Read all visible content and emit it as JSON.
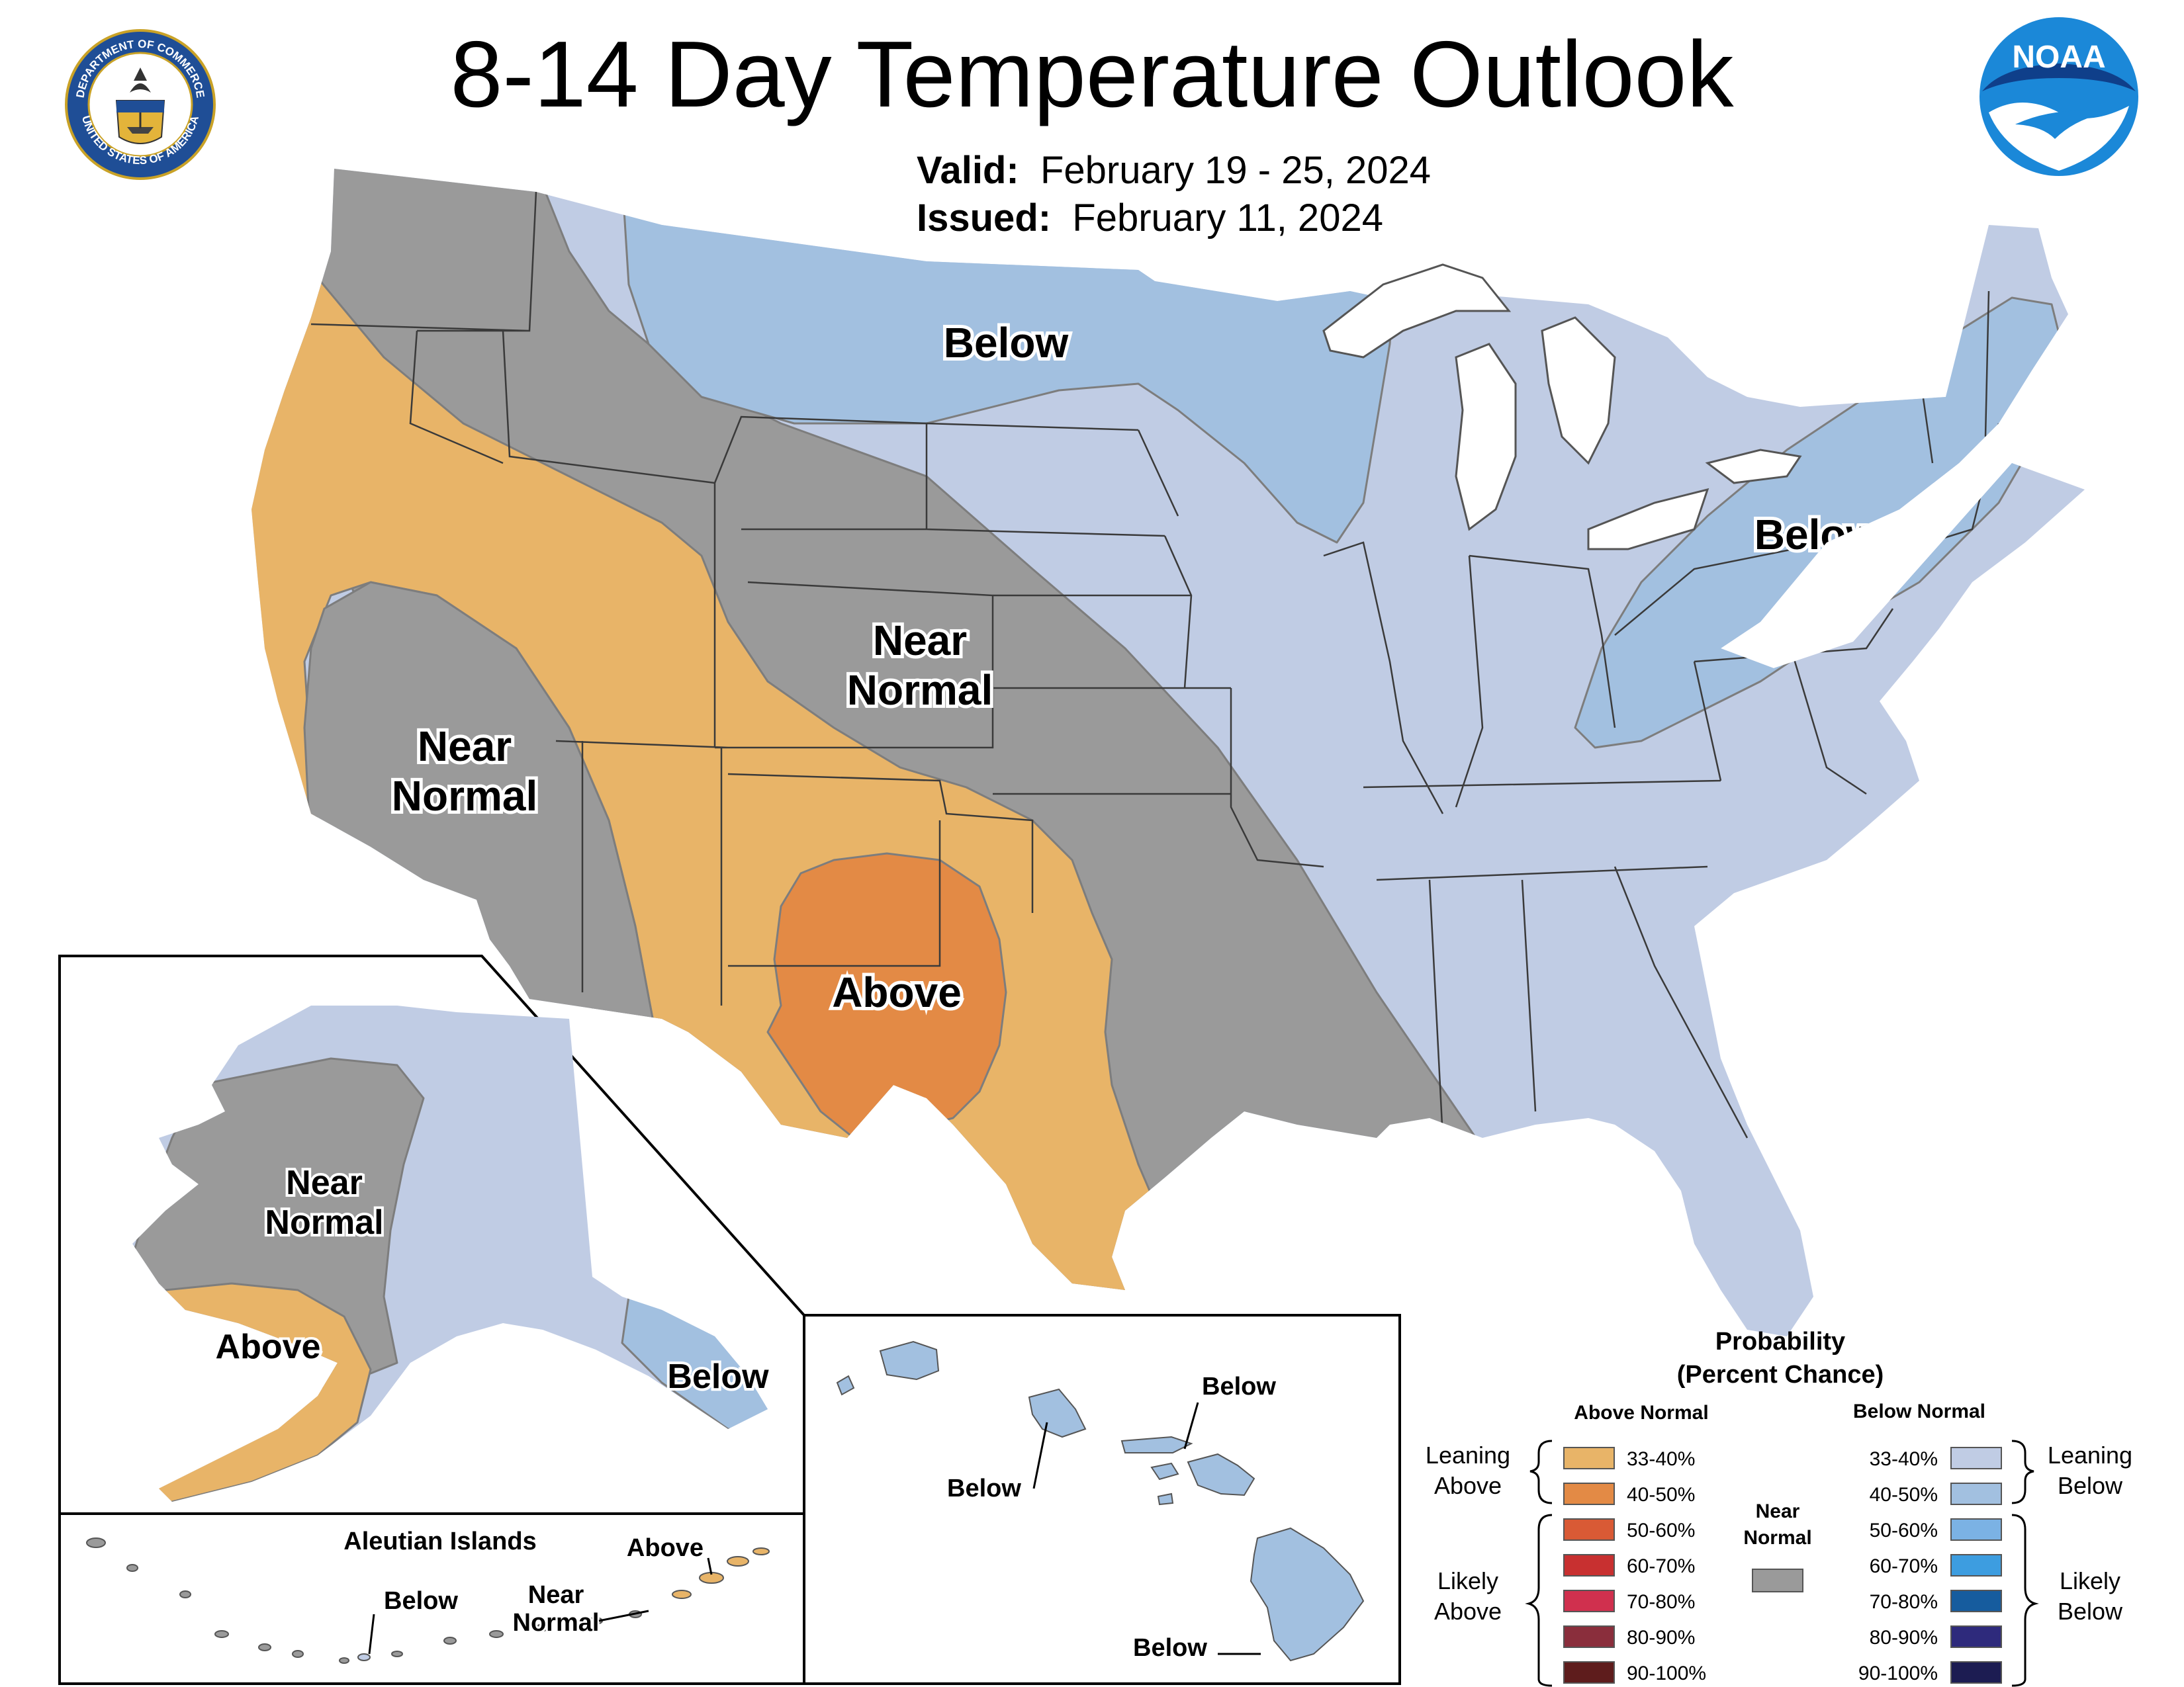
{
  "title": "8-14 Day Temperature Outlook",
  "valid_label": "Valid:",
  "valid_value": "February 19 - 25, 2024",
  "issued_label": "Issued:",
  "issued_value": "February 11, 2024",
  "logos": {
    "seal_ring_top": "DEPARTMENT OF COMMERCE",
    "seal_ring_bottom": "UNITED STATES OF AMERICA",
    "noaa_text": "NOAA"
  },
  "colors": {
    "above_33_40": "#e8b468",
    "above_40_50": "#e38a45",
    "above_50_60": "#d95a35",
    "above_60_70": "#c83030",
    "above_70_80": "#d0304e",
    "above_80_90": "#8a2e3c",
    "above_90_100": "#5e1c1c",
    "near_normal": "#9a9a9a",
    "below_33_40": "#c0cce4",
    "below_40_50": "#a2c0e0",
    "below_50_60": "#7bb2e4",
    "below_60_70": "#3d9de0",
    "below_70_80": "#165c9e",
    "below_80_90": "#2e2a7c",
    "below_90_100": "#1c1c52"
  },
  "map_labels": {
    "conus_below_north": "Below",
    "conus_below_northeast": "Below",
    "conus_near_normal_central_1": "Near",
    "conus_near_normal_central_2": "Normal",
    "conus_near_normal_west_1": "Near",
    "conus_near_normal_west_2": "Normal",
    "conus_above": "Above",
    "alaska_near_normal_1": "Near",
    "alaska_near_normal_2": "Normal",
    "alaska_above": "Above",
    "alaska_below": "Below",
    "aleutian_title": "Aleutian Islands",
    "aleutian_above": "Above",
    "aleutian_below": "Below",
    "aleutian_near_normal_1": "Near",
    "aleutian_near_normal_2": "Normal",
    "hawaii_below_ne": "Below",
    "hawaii_below_w": "Below",
    "hawaii_below_s": "Below"
  },
  "legend": {
    "title_line1": "Probability",
    "title_line2": "(Percent Chance)",
    "above_header": "Above Normal",
    "below_header": "Below Normal",
    "near_normal_line1": "Near",
    "near_normal_line2": "Normal",
    "leaning_above_1": "Leaning",
    "leaning_above_2": "Above",
    "likely_above_1": "Likely",
    "likely_above_2": "Above",
    "leaning_below_1": "Leaning",
    "leaning_below_2": "Below",
    "likely_below_1": "Likely",
    "likely_below_2": "Below",
    "ranges": [
      "33-40%",
      "40-50%",
      "50-60%",
      "60-70%",
      "70-80%",
      "80-90%",
      "90-100%"
    ]
  }
}
